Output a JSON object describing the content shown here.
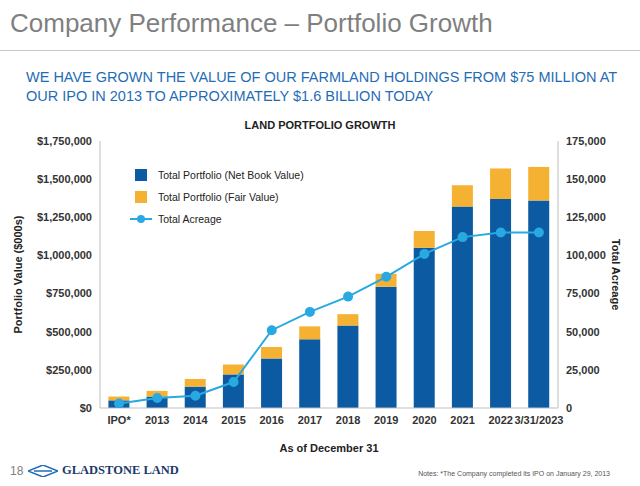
{
  "page": {
    "title": "Company Performance – Portfolio Growth",
    "subtitle": "WE HAVE GROWN THE VALUE OF OUR FARMLAND HOLDINGS FROM $75 MILLION AT OUR IPO IN 2013 TO APPROXIMATELY $1.6 BILLION TODAY",
    "page_number": "18",
    "logo": "GLADSTONE LAND",
    "notes": "Notes: *The Company completed its IPO on January 29, 2013"
  },
  "chart_data": {
    "type": "bar",
    "title": "LAND PORTFOLIO GROWTH",
    "x_label": "As of December 31",
    "y_label": "Portfolio Value ($000s)",
    "y2_label": "Total Acreage",
    "categories": [
      "IPO*",
      "2013",
      "2014",
      "2015",
      "2016",
      "2017",
      "2018",
      "2019",
      "2020",
      "2021",
      "2022",
      "3/31/2023"
    ],
    "stacked": true,
    "legend": "upper left",
    "grid": false,
    "series": [
      {
        "name": "Total Portfolio (Net Book Value)",
        "type": "bar",
        "color": "#0b5aa2",
        "values": [
          50000,
          75000,
          140000,
          220000,
          325000,
          450000,
          540000,
          795000,
          1050000,
          1320000,
          1370000,
          1360000
        ]
      },
      {
        "name": "Total Portfolio (Fair Value)",
        "type": "bar",
        "color": "#f5b131",
        "values": [
          25000,
          37000,
          50000,
          65000,
          75000,
          85000,
          75000,
          85000,
          110000,
          140000,
          200000,
          220000
        ]
      },
      {
        "name": "Total Acreage",
        "type": "line",
        "axis": "y2",
        "color": "#29a9e1",
        "marker": "circle",
        "values": [
          3000,
          6500,
          8000,
          17000,
          51000,
          63000,
          73000,
          86000,
          101000,
          112000,
          115000,
          115000
        ]
      }
    ],
    "ylim": [
      0,
      1750000
    ],
    "yticks": [
      {
        "value": 0,
        "label": "$0"
      },
      {
        "value": 250000,
        "label": "$250,000"
      },
      {
        "value": 500000,
        "label": "$500,000"
      },
      {
        "value": 750000,
        "label": "$750,000"
      },
      {
        "value": 1000000,
        "label": "$1,000,000"
      },
      {
        "value": 1250000,
        "label": "$1,250,000"
      },
      {
        "value": 1500000,
        "label": "$1,500,000"
      },
      {
        "value": 1750000,
        "label": "$1,750,000"
      }
    ],
    "y2lim": [
      0,
      175000
    ],
    "y2ticks": [
      0,
      {
        "value": 25000,
        "label": "25,000"
      },
      {
        "value": 50000,
        "label": "50,000"
      },
      {
        "value": 75000,
        "label": "75,000"
      },
      {
        "value": 100000,
        "label": "100,000"
      },
      {
        "value": 125000,
        "label": "125,000"
      },
      {
        "value": 150000,
        "label": "150,000"
      },
      {
        "value": 175000,
        "label": "175,000"
      }
    ]
  }
}
